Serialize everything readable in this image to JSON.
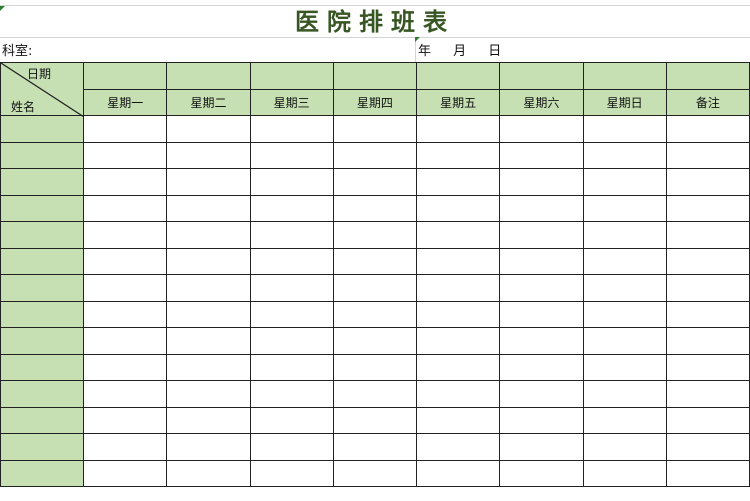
{
  "title": "医院排班表",
  "department_label": "科室:",
  "date_label": "年 月 日",
  "table": {
    "corner_top": "日期",
    "corner_bottom": "姓名",
    "days": [
      "星期一",
      "星期二",
      "星期三",
      "星期四",
      "星期五",
      "星期六",
      "星期日",
      "备注"
    ],
    "body_rows": 14
  },
  "colors": {
    "header_fill": "#c6e0b4",
    "title": "#375623",
    "border": "#222222"
  }
}
